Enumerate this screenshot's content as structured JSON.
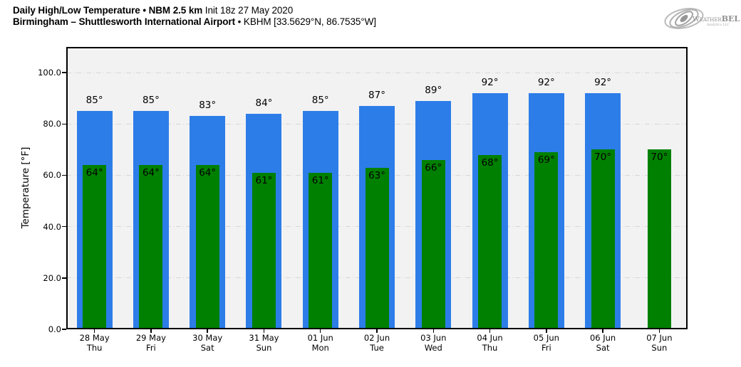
{
  "header": {
    "title_bold": "Daily High/Low Temperature • NBM 2.5 km",
    "title_info": "Init 18z 27 May 2020",
    "subtitle_bold": "Birmingham – Shuttlesworth International Airport",
    "subtitle_info": "• KBHM [33.5629°N, 86.7535°W]"
  },
  "logo": {
    "brand_first": "Weather",
    "brand_second": "BELL",
    "sub": "Analytics LLC"
  },
  "chart_data": {
    "type": "bar",
    "title": "Daily High/Low Temperature • NBM 2.5 km Init 18z 27 May 2020",
    "subtitle": "Birmingham – Shuttlesworth International Airport • KBHM [33.5629°N, 86.7535°W]",
    "xlabel": "",
    "ylabel": "Temperature [°F]",
    "ylim": [
      0,
      110
    ],
    "yticks": [
      0,
      20,
      40,
      60,
      80,
      100
    ],
    "ytick_labels": [
      "0.0",
      "20.0",
      "40.0",
      "60.0",
      "80.0",
      "100.0"
    ],
    "grid": "horizontal dash-dot",
    "legend": "none",
    "plot_background": "#f2f2f2",
    "categories": [
      {
        "date": "28 May",
        "day": "Thu"
      },
      {
        "date": "29 May",
        "day": "Fri"
      },
      {
        "date": "30 May",
        "day": "Sat"
      },
      {
        "date": "31 May",
        "day": "Sun"
      },
      {
        "date": "01 Jun",
        "day": "Mon"
      },
      {
        "date": "02 Jun",
        "day": "Tue"
      },
      {
        "date": "03 Jun",
        "day": "Wed"
      },
      {
        "date": "04 Jun",
        "day": "Thu"
      },
      {
        "date": "05 Jun",
        "day": "Fri"
      },
      {
        "date": "06 Jun",
        "day": "Sat"
      },
      {
        "date": "07 Jun",
        "day": "Sun"
      }
    ],
    "series": [
      {
        "name": "Daily High",
        "color": "#2d7de9",
        "values": [
          85,
          85,
          83,
          84,
          85,
          87,
          89,
          92,
          92,
          92,
          null
        ],
        "labels": [
          "85°",
          "85°",
          "83°",
          "84°",
          "85°",
          "87°",
          "89°",
          "92°",
          "92°",
          "92°",
          null
        ]
      },
      {
        "name": "Daily Low",
        "color": "#008000",
        "values": [
          64,
          64,
          64,
          61,
          61,
          63,
          66,
          68,
          69,
          70,
          70
        ],
        "labels": [
          "64°",
          "64°",
          "64°",
          "61°",
          "61°",
          "63°",
          "66°",
          "68°",
          "69°",
          "70°",
          "70°"
        ]
      }
    ]
  }
}
